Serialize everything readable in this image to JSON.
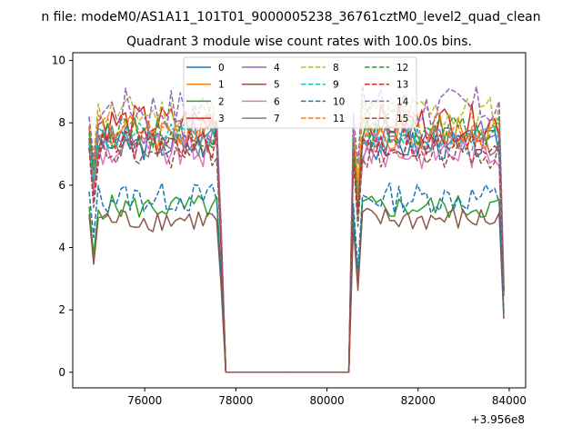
{
  "chart_data": {
    "type": "line",
    "suptitle": "n file: modeM0/AS1A11_101T01_9000005238_36761cztM0_level2_quad_clean",
    "title": "Quadrant 3 module wise count rates with 100.0s bins.",
    "xlabel": "",
    "ylabel": "",
    "x_offset_label": "+3.956e8",
    "xlim": [
      74420,
      84360
    ],
    "ylim": [
      -0.5,
      10.25
    ],
    "xticks": [
      76000,
      78000,
      80000,
      82000,
      84000
    ],
    "xtick_labels": [
      "76000",
      "78000",
      "80000",
      "82000",
      "84000"
    ],
    "yticks": [
      0,
      2,
      4,
      6,
      8,
      10
    ],
    "ytick_labels": [
      "0",
      "2",
      "4",
      "6",
      "8",
      "10"
    ],
    "grid": false,
    "legend_position": "top-center",
    "legend_columns": 4,
    "segments": {
      "active1": [
        74780,
        77580
      ],
      "gap": [
        77780,
        80480
      ],
      "active2": [
        80580,
        83880
      ],
      "step": 100
    },
    "series": [
      {
        "name": "0",
        "color": "#1f77b4",
        "dash": false,
        "level": 7.3,
        "amp": 0.5
      },
      {
        "name": "1",
        "color": "#ff7f0e",
        "dash": false,
        "level": 7.7,
        "amp": 0.6
      },
      {
        "name": "2",
        "color": "#2ca02c",
        "dash": false,
        "level": 5.3,
        "amp": 0.4
      },
      {
        "name": "3",
        "color": "#d62728",
        "dash": false,
        "level": 8.0,
        "amp": 0.6
      },
      {
        "name": "4",
        "color": "#9467bd",
        "dash": false,
        "level": 7.6,
        "amp": 0.5
      },
      {
        "name": "5",
        "color": "#8c564b",
        "dash": false,
        "level": 4.9,
        "amp": 0.4
      },
      {
        "name": "6",
        "color": "#e377c2",
        "dash": false,
        "level": 7.1,
        "amp": 0.6
      },
      {
        "name": "7",
        "color": "#7f7f7f",
        "dash": false,
        "level": 7.4,
        "amp": 0.5
      },
      {
        "name": "8",
        "color": "#bcbd22",
        "dash": true,
        "level": 8.3,
        "amp": 0.6
      },
      {
        "name": "9",
        "color": "#17becf",
        "dash": true,
        "level": 7.5,
        "amp": 0.5
      },
      {
        "name": "10",
        "color": "#1f77b4",
        "dash": true,
        "level": 5.6,
        "amp": 0.5
      },
      {
        "name": "11",
        "color": "#ff7f0e",
        "dash": true,
        "level": 7.8,
        "amp": 0.5
      },
      {
        "name": "12",
        "color": "#2ca02c",
        "dash": true,
        "level": 7.7,
        "amp": 0.5
      },
      {
        "name": "13",
        "color": "#d62728",
        "dash": true,
        "level": 7.3,
        "amp": 0.5
      },
      {
        "name": "14",
        "color": "#9467bd",
        "dash": true,
        "level": 8.5,
        "amp": 0.7
      },
      {
        "name": "15",
        "color": "#8c564b",
        "dash": true,
        "level": 7.0,
        "amp": 0.5
      }
    ]
  }
}
